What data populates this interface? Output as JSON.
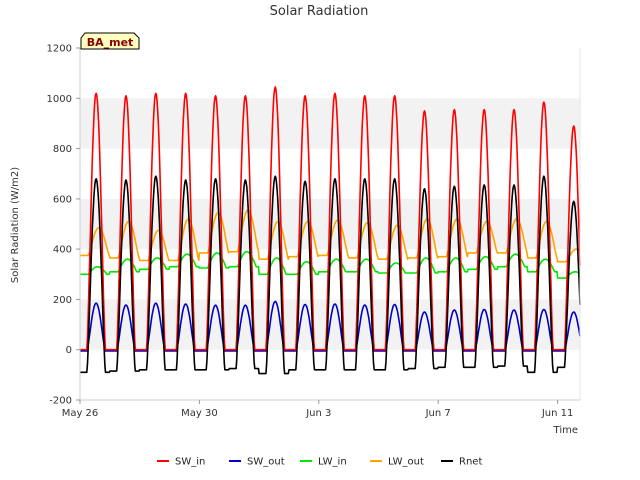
{
  "chart_data": {
    "type": "line",
    "title": "Solar Radiation",
    "xlabel": "Time",
    "ylabel": "Solar Radiation (W/m2)",
    "site_label": "BA_met",
    "ylim": [
      -200,
      1200
    ],
    "yticks": [
      -200,
      0,
      200,
      400,
      600,
      800,
      1000,
      1200
    ],
    "x_range_days": [
      "2024-05-26",
      "2024-06-11T18:00"
    ],
    "xticks": [
      {
        "date": "2024-05-26",
        "label": "May 26"
      },
      {
        "date": "2024-05-30",
        "label": "May 30"
      },
      {
        "date": "2024-06-03",
        "label": "Jun 3"
      },
      {
        "date": "2024-06-07",
        "label": "Jun 7"
      },
      {
        "date": "2024-06-11",
        "label": "Jun 11"
      }
    ],
    "grid": "horizontal bands",
    "legend_position": "bottom",
    "days": [
      "2024-05-26",
      "2024-05-27",
      "2024-05-28",
      "2024-05-29",
      "2024-05-30",
      "2024-05-31",
      "2024-06-01",
      "2024-06-02",
      "2024-06-03",
      "2024-06-04",
      "2024-06-05",
      "2024-06-06",
      "2024-06-07",
      "2024-06-08",
      "2024-06-09",
      "2024-06-10",
      "2024-06-11"
    ],
    "series": [
      {
        "name": "SW_in",
        "color": "#ff0000",
        "daily_peak": [
          1020,
          1010,
          1020,
          1020,
          1010,
          1010,
          1045,
          1010,
          1020,
          1010,
          1010,
          950,
          955,
          955,
          955,
          985,
          890
        ],
        "night_value": 0
      },
      {
        "name": "SW_out",
        "color": "#0000cc",
        "daily_peak": [
          185,
          178,
          185,
          182,
          177,
          177,
          192,
          180,
          182,
          178,
          180,
          150,
          158,
          160,
          158,
          160,
          150
        ],
        "night_value": -5
      },
      {
        "name": "LW_in",
        "color": "#00e600",
        "daily_peak": [
          330,
          360,
          365,
          380,
          385,
          390,
          365,
          350,
          360,
          360,
          345,
          365,
          365,
          370,
          380,
          360,
          310
        ],
        "night_value": [
          300,
          310,
          320,
          330,
          325,
          330,
          300,
          300,
          310,
          310,
          305,
          305,
          310,
          320,
          330,
          310,
          285
        ]
      },
      {
        "name": "LW_out",
        "color": "#ffa500",
        "daily_peak": [
          485,
          510,
          475,
          520,
          545,
          555,
          510,
          510,
          515,
          505,
          495,
          520,
          520,
          510,
          520,
          510,
          400
        ],
        "night_value": [
          375,
          365,
          355,
          355,
          385,
          390,
          360,
          370,
          375,
          365,
          360,
          365,
          370,
          385,
          385,
          365,
          350
        ]
      },
      {
        "name": "Rnet",
        "color": "#000000",
        "daily_peak": [
          680,
          675,
          690,
          675,
          680,
          675,
          690,
          670,
          680,
          680,
          680,
          640,
          650,
          655,
          655,
          690,
          590
        ],
        "night_value": [
          -90,
          -85,
          -80,
          -80,
          -80,
          -75,
          -95,
          -80,
          -80,
          -80,
          -80,
          -75,
          -70,
          -70,
          -65,
          -90,
          -70
        ]
      }
    ]
  }
}
